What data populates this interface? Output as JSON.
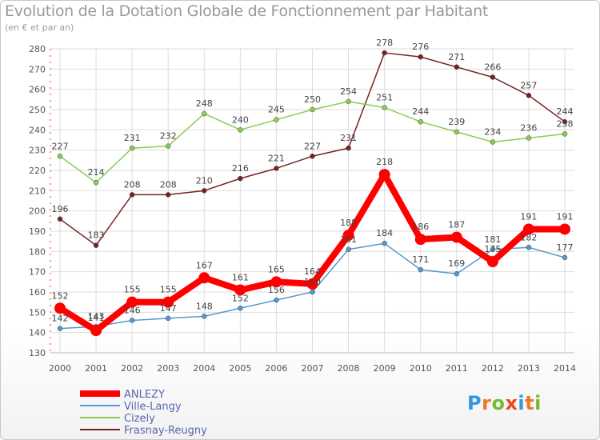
{
  "chart_data": {
    "type": "line",
    "title": "Evolution de la Dotation Globale de Fonctionnement par Habitant",
    "subtitle": "(en € et par an)",
    "x": [
      "2000",
      "2001",
      "2002",
      "2003",
      "2004",
      "2005",
      "2006",
      "2007",
      "2008",
      "2009",
      "2010",
      "2011",
      "2012",
      "2013",
      "2014"
    ],
    "ylim": [
      130,
      280
    ],
    "yticks": [
      130,
      140,
      150,
      160,
      170,
      180,
      190,
      200,
      210,
      220,
      230,
      240,
      250,
      260,
      270,
      280
    ],
    "grid": true,
    "legend_position": "bottom-left",
    "series": [
      {
        "name": "ANLEZY",
        "color": "#ff0000",
        "values": [
          152,
          141,
          155,
          155,
          167,
          161,
          165,
          164,
          188,
          218,
          186,
          187,
          175,
          191,
          191
        ]
      },
      {
        "name": "Ville-Langy",
        "color": "#5599cc",
        "values": [
          142,
          143,
          146,
          147,
          148,
          152,
          156,
          160,
          181,
          184,
          171,
          169,
          181,
          182,
          177
        ]
      },
      {
        "name": "Cizely",
        "color": "#88cc55",
        "values": [
          227,
          214,
          231,
          232,
          248,
          240,
          245,
          250,
          254,
          251,
          244,
          239,
          234,
          236,
          238
        ]
      },
      {
        "name": "Frasnay-Reugny",
        "color": "#772222",
        "values": [
          196,
          183,
          208,
          208,
          210,
          216,
          221,
          227,
          231,
          278,
          276,
          271,
          266,
          257,
          244
        ]
      }
    ]
  },
  "logo": {
    "letters": [
      "P",
      "r",
      "o",
      "x",
      "i",
      "t",
      "i"
    ],
    "colors": [
      "#3399dd",
      "#ee7722",
      "#77bb33",
      "#ee4422",
      "#3399dd",
      "#ee7722",
      "#77bb33"
    ]
  }
}
